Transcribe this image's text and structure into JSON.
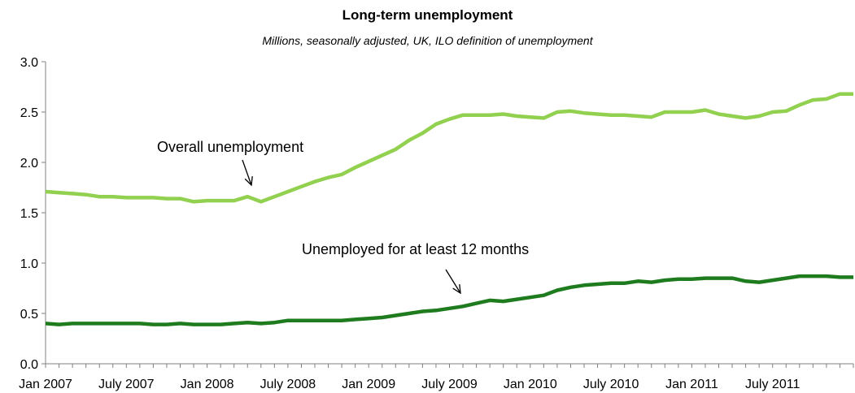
{
  "chart_data": {
    "type": "line",
    "title": "Long-term unemployment",
    "subtitle": "Millions, seasonally adjusted, UK, ILO definition of unemployment",
    "ylim": [
      0.0,
      3.0
    ],
    "y_ticks": [
      "0.0",
      "0.5",
      "1.0",
      "1.5",
      "2.0",
      "2.5",
      "3.0"
    ],
    "x_tick_labels": [
      "Jan 2007",
      "July 2007",
      "Jan 2008",
      "July 2008",
      "Jan 2009",
      "July 2009",
      "Jan 2010",
      "July 2010",
      "Jan 2011",
      "July 2011"
    ],
    "legend": "none",
    "grid": false,
    "series": [
      {
        "name": "Overall unemployment",
        "color": "#92d050",
        "values": [
          1.71,
          1.7,
          1.69,
          1.68,
          1.66,
          1.66,
          1.65,
          1.65,
          1.65,
          1.64,
          1.64,
          1.61,
          1.62,
          1.62,
          1.62,
          1.66,
          1.61,
          1.66,
          1.71,
          1.76,
          1.81,
          1.85,
          1.88,
          1.95,
          2.01,
          2.07,
          2.13,
          2.22,
          2.29,
          2.38,
          2.43,
          2.47,
          2.47,
          2.47,
          2.48,
          2.46,
          2.45,
          2.44,
          2.5,
          2.51,
          2.49,
          2.48,
          2.47,
          2.47,
          2.46,
          2.45,
          2.5,
          2.5,
          2.5,
          2.52,
          2.48,
          2.46,
          2.44,
          2.46,
          2.5,
          2.51,
          2.57,
          2.62,
          2.63,
          2.68,
          2.68
        ]
      },
      {
        "name": "Unemployed for at least 12 months",
        "color": "#1e7b1e",
        "values": [
          0.4,
          0.39,
          0.4,
          0.4,
          0.4,
          0.4,
          0.4,
          0.4,
          0.39,
          0.39,
          0.4,
          0.39,
          0.39,
          0.39,
          0.4,
          0.41,
          0.4,
          0.41,
          0.43,
          0.43,
          0.43,
          0.43,
          0.43,
          0.44,
          0.45,
          0.46,
          0.48,
          0.5,
          0.52,
          0.53,
          0.55,
          0.57,
          0.6,
          0.63,
          0.62,
          0.64,
          0.66,
          0.68,
          0.73,
          0.76,
          0.78,
          0.79,
          0.8,
          0.8,
          0.82,
          0.81,
          0.83,
          0.84,
          0.84,
          0.85,
          0.85,
          0.85,
          0.82,
          0.81,
          0.83,
          0.85,
          0.87,
          0.87,
          0.87,
          0.86,
          0.86
        ]
      }
    ],
    "annotations": [
      {
        "text": "Overall unemployment",
        "series": 0
      },
      {
        "text": "Unemployed for at least 12 months",
        "series": 1
      }
    ]
  }
}
